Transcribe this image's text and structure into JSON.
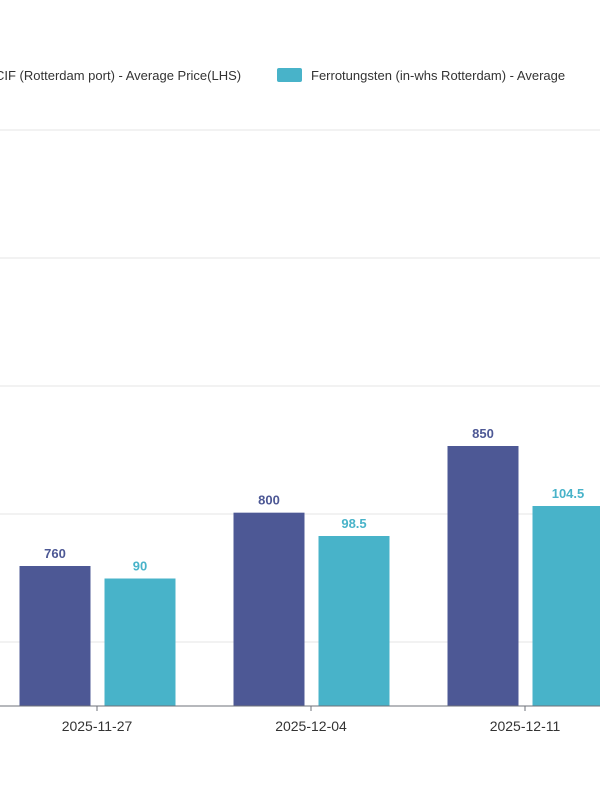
{
  "chart_data": {
    "type": "bar",
    "categories": [
      "2025-11-27",
      "2025-12-04",
      "2025-12-11"
    ],
    "series": [
      {
        "name": "CIF (Rotterdam port) - Average Price(LHS)",
        "color": "#4d5895",
        "values": [
          760,
          800,
          850
        ],
        "labels": [
          "760",
          "800",
          "850"
        ]
      },
      {
        "name": "Ferrotungsten (in-whs Rotterdam) - Average ",
        "color": "#48b3c9",
        "values": [
          90,
          98.5,
          104.5
        ],
        "labels": [
          "90",
          "98.5",
          "104.5"
        ]
      }
    ],
    "grid": true,
    "legend_position": "top"
  }
}
